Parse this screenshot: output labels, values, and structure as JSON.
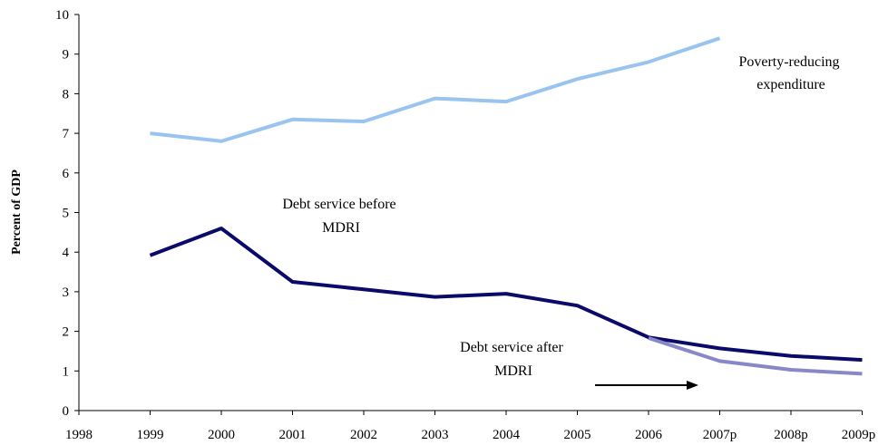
{
  "chart_data": {
    "type": "line",
    "title": "",
    "xlabel": "",
    "ylabel": "Percent of GDP",
    "categories": [
      "1998",
      "1999",
      "2000",
      "2001",
      "2002",
      "2003",
      "2004",
      "2005",
      "2006",
      "2007p",
      "2008p",
      "2009p"
    ],
    "ylim": [
      0,
      10
    ],
    "yticks": [
      "0",
      "1",
      "2",
      "3",
      "4",
      "5",
      "6",
      "7",
      "8",
      "9",
      "10"
    ],
    "grid": false,
    "series": [
      {
        "name": "Poverty-reducing expenditure",
        "color": "#99c4ef",
        "values": [
          null,
          7.0,
          6.8,
          7.35,
          7.3,
          7.88,
          7.8,
          8.37,
          8.8,
          9.4,
          null,
          null
        ]
      },
      {
        "name": "Debt service before MDRI",
        "color": "#0a0a6a",
        "values": [
          null,
          3.92,
          4.6,
          3.25,
          3.06,
          2.87,
          2.95,
          2.65,
          1.85,
          1.57,
          1.38,
          1.28
        ]
      },
      {
        "name": "Debt service after MDRI",
        "color": "#8888c8",
        "values": [
          null,
          null,
          null,
          null,
          null,
          null,
          null,
          null,
          1.83,
          1.25,
          1.03,
          0.93
        ]
      }
    ],
    "annotations": [
      {
        "id": "poverty",
        "lines": [
          "Poverty-reducing",
          "expenditure"
        ]
      },
      {
        "id": "before",
        "lines": [
          "Debt service before",
          "MDRI"
        ]
      },
      {
        "id": "after",
        "lines": [
          "Debt service after",
          "MDRI"
        ]
      }
    ]
  }
}
